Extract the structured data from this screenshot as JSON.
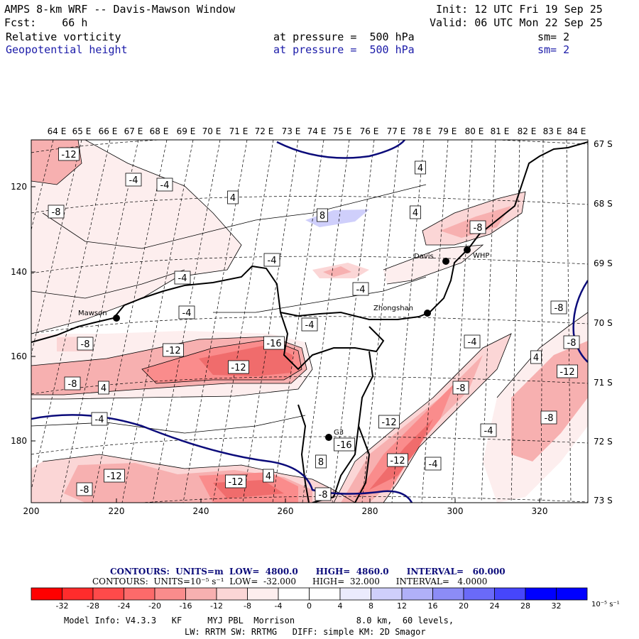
{
  "header": {
    "title": "AMPS 8-km WRF -- Davis-Mawson Window",
    "init": "Init: 12 UTC Fri 19 Sep 25",
    "fcst": "Fcst:    66 h",
    "valid": "Valid: 06 UTC Mon 22 Sep 25",
    "field1": {
      "name": "Relative vorticity",
      "level": "at pressure =  500 hPa",
      "sm": "sm= 2"
    },
    "field2": {
      "name": "Geopotential height",
      "level": "at pressure =  500 hPa",
      "sm": "sm= 2"
    }
  },
  "map": {
    "top_lon_labels": [
      "64 E",
      "65 E",
      "66 E",
      "67 E",
      "68 E",
      "69 E",
      "70 E",
      "71 E",
      "72 E",
      "73 E",
      "74 E",
      "75 E",
      "76 E",
      "77 E",
      "78 E",
      "79 E",
      "80 E",
      "81 E",
      "82 E",
      "83 E",
      "84 E"
    ],
    "right_lat_labels": [
      "67 S",
      "68 S",
      "69 S",
      "70 S",
      "71 S",
      "72 S",
      "73 S"
    ],
    "x_ticks": [
      "200",
      "220",
      "240",
      "260",
      "280",
      "300",
      "320"
    ],
    "y_ticks": [
      "120",
      "140",
      "160",
      "180"
    ],
    "stations": [
      {
        "name": "Mawson"
      },
      {
        "name": "Davis"
      },
      {
        "name": "WHP"
      },
      {
        "name": "Zhongshan"
      },
      {
        "name": "G3"
      }
    ],
    "contour_labels": [
      "-12",
      "-4",
      "-4",
      "4",
      "-8",
      "8",
      "4",
      "4",
      "-8",
      "-4",
      "-4",
      "-4",
      "-4",
      "-4",
      "-8",
      "-8",
      "-12",
      "-16",
      "-12",
      "-8",
      "4",
      "-4",
      "4",
      "-8",
      "-8",
      "-12",
      "-8",
      "-4",
      "-4",
      "-12",
      "-16",
      "-12",
      "8",
      "-12",
      "4",
      "-8",
      "-12",
      "-4",
      "-8"
    ]
  },
  "legend": {
    "contours1": "CONTOURS:  UNITS=m  LOW=  4800.0      HIGH=  4860.0      INTERVAL=   60.000",
    "contours2": "CONTOURS:  UNITS=10⁻⁵ s⁻¹  LOW=  -32.000      HIGH=  32.000      INTERVAL=   4.0000",
    "ticks": [
      "-32",
      "-28",
      "-24",
      "-20",
      "-16",
      "-12",
      "-8",
      "-4",
      "0",
      "4",
      "8",
      "12",
      "16",
      "20",
      "24",
      "28",
      "32"
    ],
    "unit": "10⁻⁵ s⁻¹",
    "colors": [
      "#ff0000",
      "#ff2c2c",
      "#ff4a4a",
      "#fc6a6a",
      "#fa8c8c",
      "#f7b0b0",
      "#fbd6d6",
      "#fdeeee",
      "#ffffff",
      "#ffffff",
      "#ebebfd",
      "#cfcffb",
      "#b0b0f8",
      "#8c8cf6",
      "#6a6af8",
      "#4646fb",
      "#0000ff"
    ]
  },
  "footer": {
    "line1": "Model Info: V4.3.3   KF     MYJ PBL  Morrison            8.0 km,  60 levels,",
    "line2": "LW: RRTM SW: RRTMG   DIFF: simple KM: 2D Smagor"
  }
}
